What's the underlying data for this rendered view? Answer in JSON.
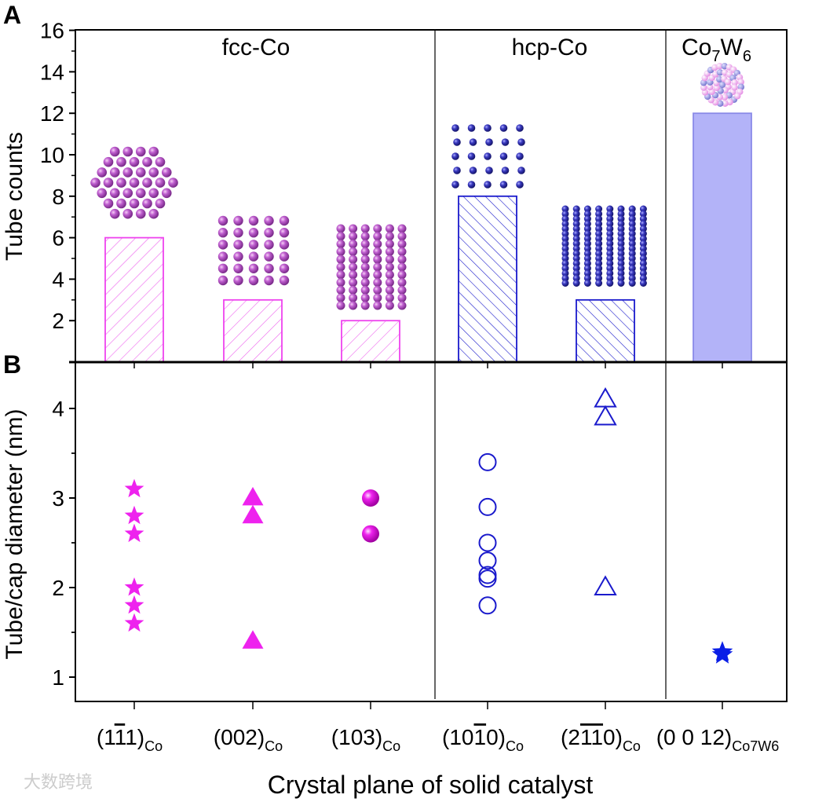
{
  "chart_data": [
    {
      "panel": "A",
      "type": "bar",
      "ylabel": "Tube counts",
      "ylim": [
        0,
        16
      ],
      "yticks": [
        2,
        4,
        6,
        8,
        10,
        12,
        14,
        16
      ],
      "groups": [
        "fcc-Co",
        "hcp-Co",
        "Co7W6"
      ],
      "group_label_parts": {
        "co7w6": [
          "Co",
          "7",
          "W",
          "6"
        ]
      },
      "categories": [
        "(1-11)Co",
        "(002)Co",
        "(103)Co",
        "(10-10)Co",
        "(2-1-10)Co",
        "(0 0 12)Co7W6"
      ],
      "values": [
        6,
        3,
        2,
        8,
        3,
        12
      ],
      "category_group": [
        "fcc-Co",
        "fcc-Co",
        "fcc-Co",
        "hcp-Co",
        "hcp-Co",
        "Co7W6"
      ]
    },
    {
      "panel": "B",
      "type": "scatter",
      "xlabel": "Crystal plane of solid catalyst",
      "ylabel": "Tube/cap diameter (nm)",
      "ylim": [
        0.7,
        4.5
      ],
      "yticks": [
        1,
        2,
        3,
        4
      ],
      "series": [
        {
          "category": "(1-11)Co",
          "marker": "filled-star",
          "values": [
            3.1,
            2.8,
            2.6,
            2.0,
            1.8,
            1.6
          ]
        },
        {
          "category": "(002)Co",
          "marker": "filled-triangle",
          "values": [
            3.0,
            2.8,
            1.4
          ]
        },
        {
          "category": "(103)Co",
          "marker": "sphere",
          "values": [
            3.0,
            2.6
          ]
        },
        {
          "category": "(10-10)Co",
          "marker": "open-circle",
          "values": [
            3.4,
            2.9,
            2.5,
            2.3,
            2.14,
            2.1,
            1.8
          ]
        },
        {
          "category": "(2-1-10)Co",
          "marker": "open-triangle",
          "values": [
            4.1,
            3.9,
            2.0
          ]
        },
        {
          "category": "(0 0 12)Co7W6",
          "marker": "blue-star",
          "values": [
            1.25,
            1.28
          ]
        }
      ]
    }
  ],
  "panel_labels": [
    "A",
    "B"
  ],
  "x_tick_labels": [
    {
      "main": "(1",
      "bar": "1",
      "rest": "1)",
      "sub": "Co"
    },
    {
      "main": "(002)",
      "bar": "",
      "rest": "",
      "sub": "Co"
    },
    {
      "main": "(103)",
      "bar": "",
      "rest": "",
      "sub": "Co"
    },
    {
      "main": "(10",
      "bar": "1",
      "rest": "0)",
      "sub": "Co"
    },
    {
      "main": "(2",
      "bar": "11",
      "rest": "0)",
      "sub": "Co"
    },
    {
      "main": "(0 0 12)",
      "bar": "",
      "rest": "",
      "sub": "Co7W6"
    }
  ],
  "watermark": "大数跨境",
  "colors": {
    "fcc": "#ee44ee",
    "fcc_atom": "#b040c0",
    "hcp": "#1a1acc",
    "co7w6_bar": "#b3b3f8",
    "star": "#ee22ee",
    "blue_star": "#0a1ee6"
  }
}
